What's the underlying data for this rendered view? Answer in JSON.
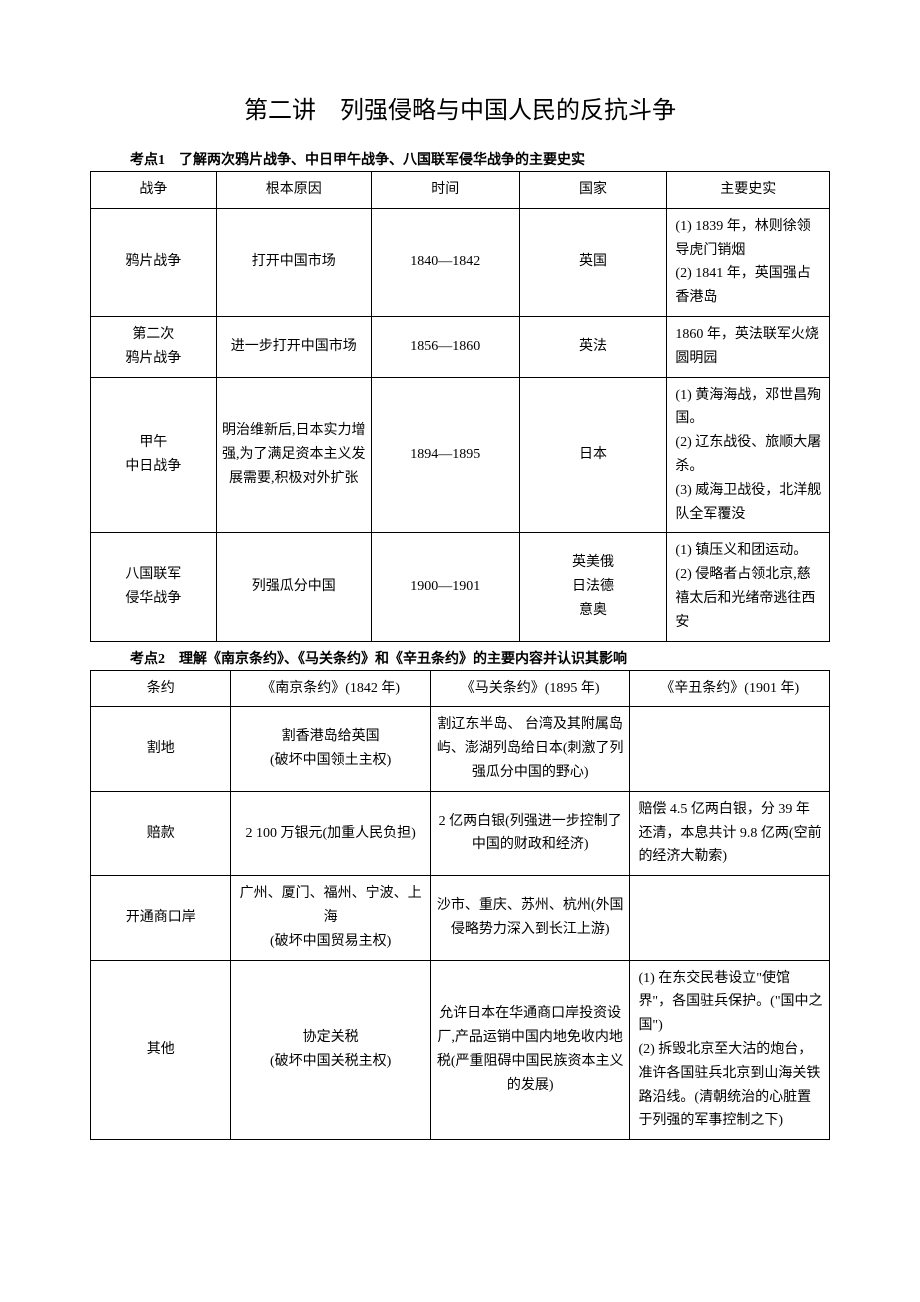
{
  "title": "第二讲　列强侵略与中国人民的反抗斗争",
  "kaodian1": "考点1　了解两次鸦片战争、中日甲午战争、八国联军侵华战争的主要史实",
  "kaodian2": "考点2　理解《南京条约》、《马关条约》和《辛丑条约》的主要内容并认识其影响",
  "table1": {
    "headers": [
      "战争",
      "根本原因",
      "时间",
      "国家",
      "主要史实"
    ],
    "rows": [
      {
        "war": "鸦片战争",
        "cause": "打开中国市场",
        "time": "1840—1842",
        "country": "英国",
        "facts": "(1) 1839 年，林则徐领导虎门销烟\n(2) 1841 年，英国强占香港岛"
      },
      {
        "war": "第二次\n鸦片战争",
        "cause": "进一步打开中国市场",
        "time": "1856—1860",
        "country": "英法",
        "facts": "1860 年，英法联军火烧圆明园"
      },
      {
        "war": "甲午\n中日战争",
        "cause": "明治维新后,日本实力增强,为了满足资本主义发展需要,积极对外扩张",
        "time": "1894—1895",
        "country": "日本",
        "facts": "(1) 黄海海战，邓世昌殉国。\n(2) 辽东战役、旅顺大屠杀。\n(3) 威海卫战役，北洋舰队全军覆没"
      },
      {
        "war": "八国联军\n侵华战争",
        "cause": "列强瓜分中国",
        "time": "1900—1901",
        "country": "英美俄\n日法德\n意奥",
        "facts": "(1) 镇压义和团运动。\n(2) 侵略者占领北京,慈禧太后和光绪帝逃往西安"
      }
    ]
  },
  "table2": {
    "headers": [
      "条约",
      "《南京条约》(1842 年)",
      "《马关条约》(1895 年)",
      "《辛丑条约》(1901 年)"
    ],
    "rows": [
      {
        "label": "割地",
        "nanjing": "割香港岛给英国\n(破坏中国领土主权)",
        "maguan": "割辽东半岛、 台湾及其附属岛屿、澎湖列岛给日本(刺激了列强瓜分中国的野心)",
        "xinchou": ""
      },
      {
        "label": "赔款",
        "nanjing": "2 100 万银元(加重人民负担)",
        "maguan": "2 亿两白银(列强进一步控制了中国的财政和经济)",
        "xinchou": "赔偿 4.5 亿两白银，分 39 年还清，本息共计 9.8 亿两(空前的经济大勒索)"
      },
      {
        "label": "开通商口岸",
        "nanjing": "广州、厦门、福州、宁波、上海\n(破坏中国贸易主权)",
        "maguan": "沙市、重庆、苏州、杭州(外国侵略势力深入到长江上游)",
        "xinchou": ""
      },
      {
        "label": "其他",
        "nanjing": "协定关税\n(破坏中国关税主权)",
        "maguan": "允许日本在华通商口岸投资设厂,产品运销中国内地免收内地税(严重阻碍中国民族资本主义的发展)",
        "xinchou": "(1) 在东交民巷设立\"使馆界\"，各国驻兵保护。(\"国中之国\")\n(2) 拆毁北京至大沽的炮台，准许各国驻兵北京到山海关铁路沿线。(清朝统治的心脏置于列强的军事控制之下)"
      }
    ]
  }
}
